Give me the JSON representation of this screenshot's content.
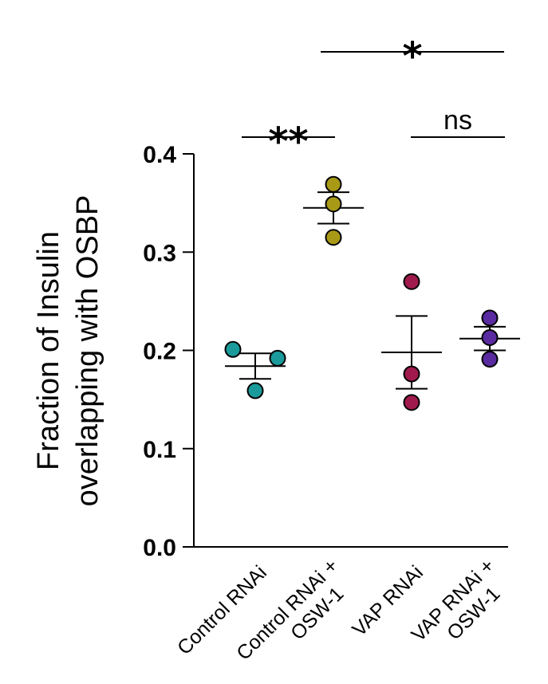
{
  "chart_data": {
    "type": "scatter",
    "ylabel": [
      "Fraction of Insulin",
      "overlapping with OSBP"
    ],
    "xlabel": "",
    "ylim": [
      0,
      0.4
    ],
    "yticks": [
      "0.0",
      "0.1",
      "0.2",
      "0.3",
      "0.4"
    ],
    "grid": false,
    "categories": [
      [
        "Control RNAi"
      ],
      [
        "Control RNAi +",
        "OSW-1"
      ],
      [
        "VAP RNAi"
      ],
      [
        "VAP RNAi +",
        "OSW-1"
      ]
    ],
    "groups": [
      {
        "points": [
          0.201,
          0.192,
          0.159
        ],
        "mean": 0.184,
        "sem": 0.013,
        "color": "#1a9a9a"
      },
      {
        "points": [
          0.369,
          0.349,
          0.315
        ],
        "mean": 0.345,
        "sem": 0.016,
        "color": "#a89a16"
      },
      {
        "points": [
          0.27,
          0.176,
          0.147
        ],
        "mean": 0.198,
        "sem": 0.037,
        "color": "#a01a4e"
      },
      {
        "points": [
          0.233,
          0.213,
          0.191
        ],
        "mean": 0.212,
        "sem": 0.012,
        "color": "#5a2aa0"
      }
    ],
    "significance": [
      {
        "from": 0,
        "to": 1,
        "label": "**"
      },
      {
        "from": 2,
        "to": 3,
        "label": "ns"
      },
      {
        "from": 1,
        "to": 3,
        "label": "*"
      }
    ]
  }
}
